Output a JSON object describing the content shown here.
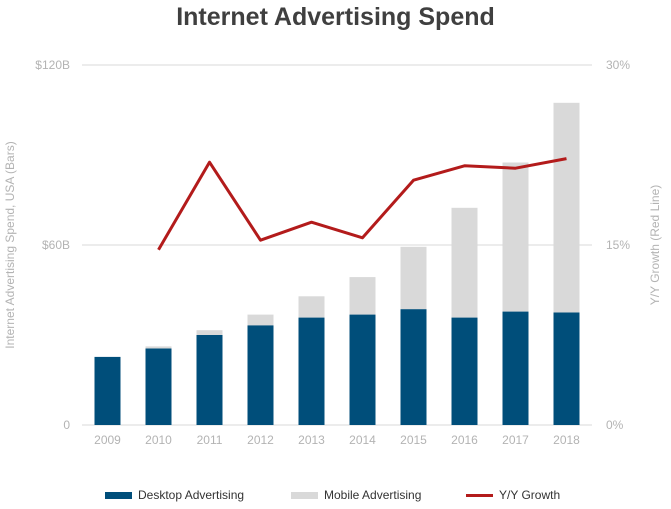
{
  "chart_data": {
    "type": "bar",
    "title": "Internet Advertising Spend",
    "categories": [
      "2009",
      "2010",
      "2011",
      "2012",
      "2013",
      "2014",
      "2015",
      "2016",
      "2017",
      "2018"
    ],
    "series": [
      {
        "name": "Desktop Advertising",
        "kind": "bar",
        "axis": "left",
        "color": "#004e7a",
        "values": [
          22.7,
          25.5,
          30.0,
          33.2,
          35.8,
          36.8,
          38.6,
          35.8,
          37.8,
          37.5
        ]
      },
      {
        "name": "Mobile Advertising",
        "kind": "bar",
        "axis": "left",
        "color": "#d9d9d9",
        "values": [
          0.0,
          0.7,
          1.6,
          3.6,
          7.1,
          12.5,
          20.8,
          36.6,
          49.7,
          69.9
        ]
      },
      {
        "name": "Y/Y Growth",
        "kind": "line",
        "axis": "right",
        "color": "#b31b1b",
        "values": [
          null,
          14.6,
          21.9,
          15.4,
          16.9,
          15.6,
          20.4,
          21.6,
          21.4,
          22.2
        ]
      }
    ],
    "ylabel": "Internet Advertising Spend, USA (Bars)",
    "y2label": "Y/Y Growth (Red Line)",
    "ylim": [
      0,
      120
    ],
    "y2lim": [
      0,
      30
    ],
    "yticks": [
      {
        "value": 0,
        "label": "0"
      },
      {
        "value": 60,
        "label": "$60B"
      },
      {
        "value": 120,
        "label": "$120B"
      }
    ],
    "y2ticks": [
      {
        "value": 0,
        "label": "0%"
      },
      {
        "value": 15,
        "label": "15%"
      },
      {
        "value": 30,
        "label": "30%"
      }
    ],
    "grid": true,
    "legend": "bottom"
  }
}
